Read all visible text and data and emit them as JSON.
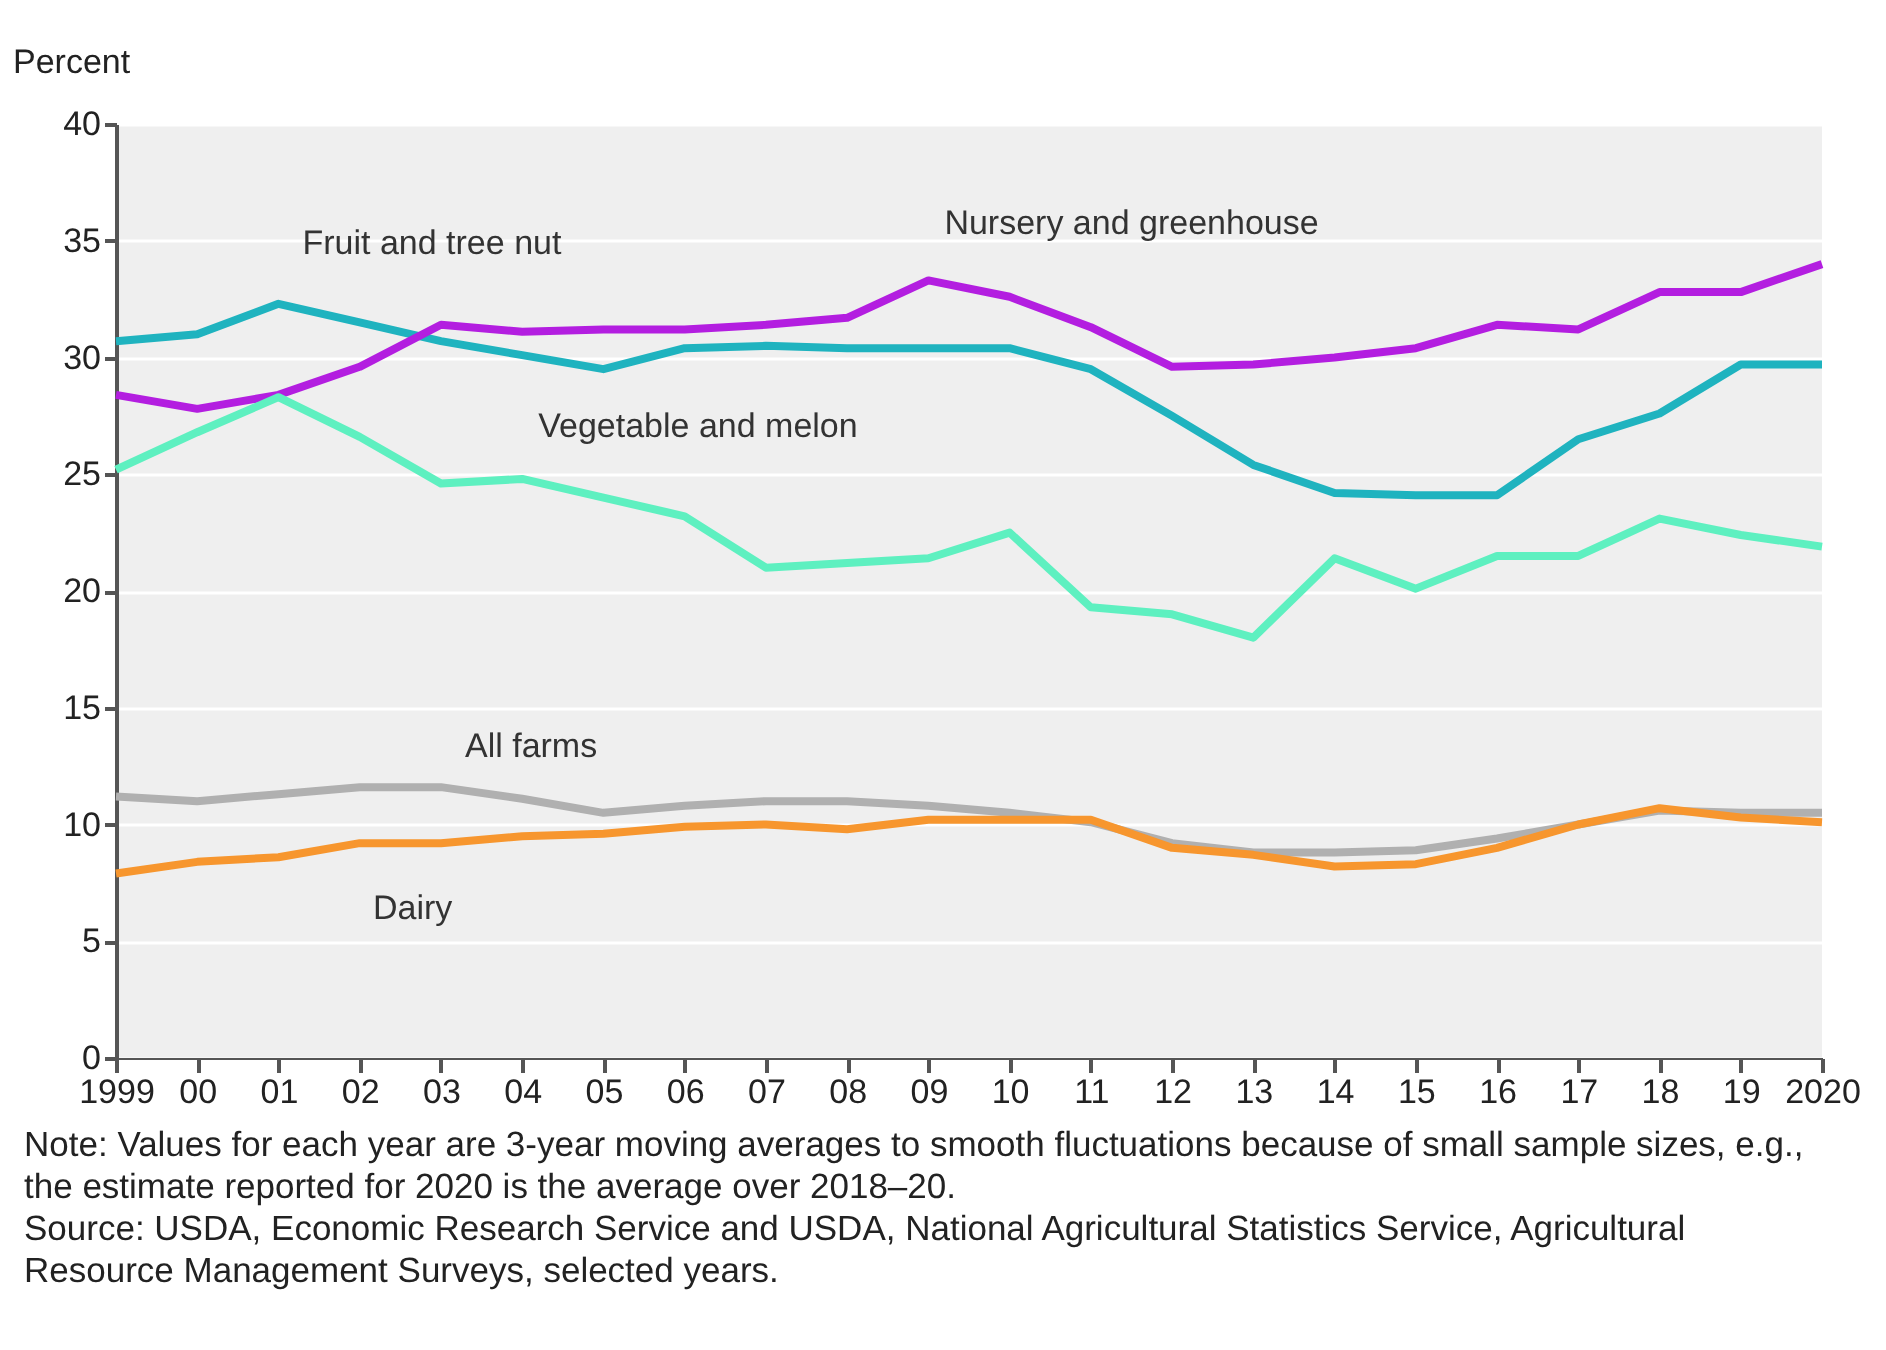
{
  "chart_data": {
    "type": "line",
    "ylabel": "Percent",
    "categories": [
      "1999",
      "00",
      "01",
      "02",
      "03",
      "04",
      "05",
      "06",
      "07",
      "08",
      "09",
      "10",
      "11",
      "12",
      "13",
      "14",
      "15",
      "16",
      "17",
      "18",
      "19",
      "2020"
    ],
    "series": [
      {
        "name": "Fruit and tree nut",
        "color": "#1fb3bf",
        "values": [
          30.7,
          31.0,
          32.3,
          31.5,
          30.7,
          30.1,
          29.5,
          30.4,
          30.5,
          30.4,
          30.4,
          30.4,
          29.5,
          27.5,
          25.4,
          24.2,
          24.1,
          24.1,
          26.5,
          27.6,
          29.7,
          29.7
        ]
      },
      {
        "name": "Nursery and greenhouse",
        "color": "#b31ee0",
        "values": [
          28.4,
          27.8,
          28.4,
          29.6,
          31.4,
          31.1,
          31.2,
          31.2,
          31.4,
          31.7,
          33.3,
          32.6,
          31.3,
          29.6,
          29.7,
          30.0,
          30.4,
          31.4,
          31.2,
          32.8,
          32.8,
          34.0
        ]
      },
      {
        "name": "Vegetable and melon",
        "color": "#5ef0c0",
        "values": [
          25.2,
          26.8,
          28.3,
          26.6,
          24.6,
          24.8,
          24.0,
          23.2,
          21.0,
          21.2,
          21.4,
          22.5,
          19.3,
          19.0,
          18.0,
          21.4,
          20.1,
          21.5,
          21.5,
          23.1,
          22.4,
          21.9
        ]
      },
      {
        "name": "All farms",
        "color": "#b0b0b0",
        "values": [
          11.2,
          11.0,
          11.3,
          11.6,
          11.6,
          11.1,
          10.5,
          10.8,
          11.0,
          11.0,
          10.8,
          10.5,
          10.1,
          9.2,
          8.8,
          8.8,
          8.9,
          9.4,
          10.0,
          10.6,
          10.5,
          10.5
        ]
      },
      {
        "name": "Dairy",
        "color": "#f7962e",
        "values": [
          7.9,
          8.4,
          8.6,
          9.2,
          9.2,
          9.5,
          9.6,
          9.9,
          10.0,
          9.8,
          10.2,
          10.2,
          10.2,
          9.0,
          8.7,
          8.2,
          8.3,
          9.0,
          10.0,
          10.7,
          10.3,
          10.1
        ]
      }
    ],
    "ylim": [
      0,
      40
    ],
    "yticks": [
      0,
      5,
      10,
      15,
      20,
      25,
      30,
      35,
      40
    ],
    "grid": "y",
    "legend": false,
    "marker": "none",
    "line_style": "solid",
    "annotations": [
      "Note: Values for each year are 3-year moving averages to smooth fluctuations because of small sample sizes, e.g., the estimate reported for 2020 is the average over 2018–20.",
      "Source: USDA, Economic Research Service and USDA, National Agricultural Statistics Service, Agricultural Resource Management Surveys, selected years."
    ]
  }
}
